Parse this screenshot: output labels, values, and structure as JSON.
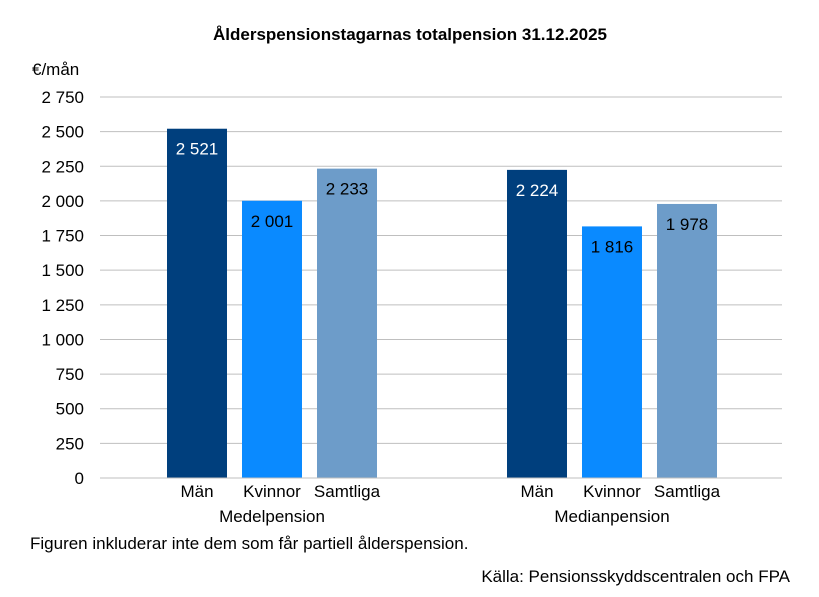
{
  "chart_data": {
    "type": "bar",
    "title": "Ålderspensionstagarnas totalpension 31.12.2025",
    "ylabel": "€/mån",
    "ylim": [
      0,
      2750
    ],
    "yticks": [
      0,
      250,
      500,
      750,
      1000,
      1250,
      1500,
      1750,
      2000,
      2250,
      2500,
      2750
    ],
    "ytick_labels": [
      "0",
      "250",
      "500",
      "750",
      "1 000",
      "1 250",
      "1 500",
      "1 750",
      "2 000",
      "2 250",
      "2 500",
      "2 750"
    ],
    "grid": true,
    "groups": [
      {
        "name": "Medelpension",
        "categories": [
          "Män",
          "Kvinnor",
          "Samtliga"
        ],
        "values": [
          2521,
          2001,
          2233
        ],
        "data_labels": [
          "2 521",
          "2 001",
          "2 233"
        ]
      },
      {
        "name": "Medianpension",
        "categories": [
          "Män",
          "Kvinnor",
          "Samtliga"
        ],
        "values": [
          2224,
          1816,
          1978
        ],
        "data_labels": [
          "2 224",
          "1 816",
          "1 978"
        ]
      }
    ],
    "colors": [
      "#003f7d",
      "#0a8aff",
      "#6d9cc9"
    ],
    "label_colors": [
      "#ffffff",
      "#000000",
      "#000000"
    ]
  },
  "footnote": "Figuren inkluderar inte dem som får partiell ålderspension.",
  "source": "Källa: Pensionsskyddscentralen  och FPA"
}
